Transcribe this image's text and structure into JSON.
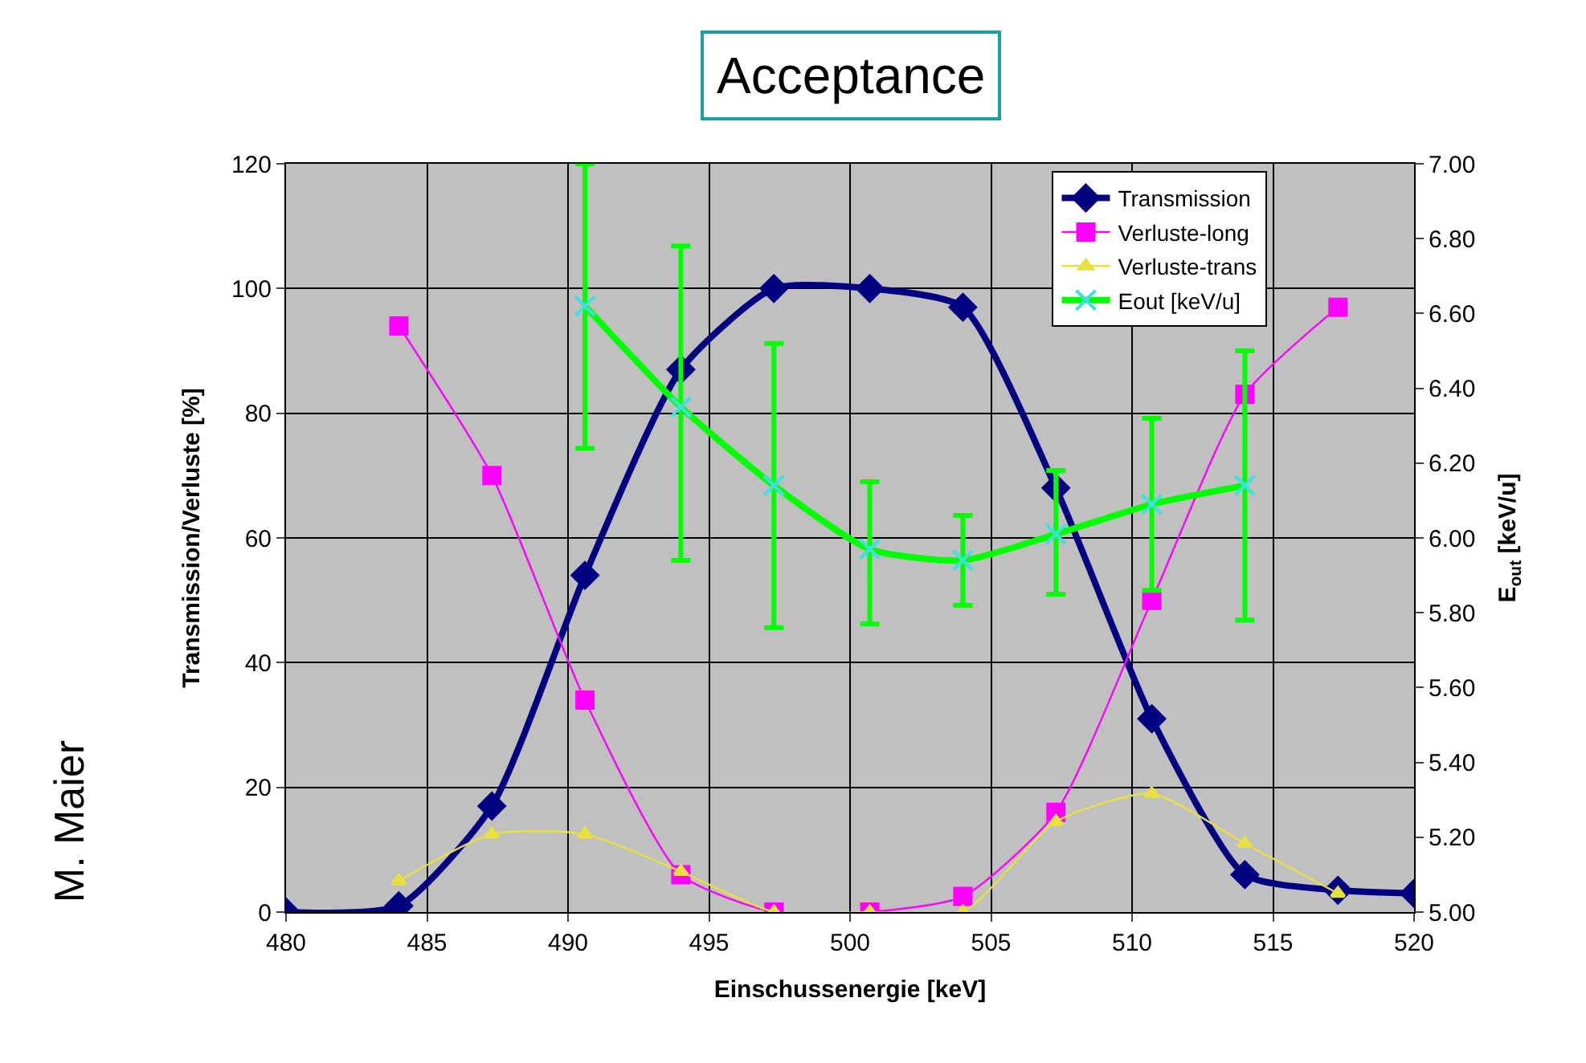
{
  "chart_data": {
    "type": "line",
    "title": "Acceptance",
    "xlabel": "Einschussenergie [keV]",
    "ylabel": "Transmission/Verluste [%]",
    "y2label": "E$_{out}$ [keV/u]",
    "annotations": [
      "M. Maier"
    ],
    "xlim": [
      480,
      520
    ],
    "xticks": [
      480,
      485,
      490,
      495,
      500,
      505,
      510,
      515,
      520
    ],
    "ylim": [
      0,
      120
    ],
    "yticks": [
      0,
      20,
      40,
      60,
      80,
      100,
      120
    ],
    "y2lim": [
      5.0,
      7.0
    ],
    "y2ticks": [
      {
        "value": 5.0,
        "label": "5.00"
      },
      {
        "value": 5.2,
        "label": "5.20"
      },
      {
        "value": 5.4,
        "label": "5.40"
      },
      {
        "value": 5.6,
        "label": "5.60"
      },
      {
        "value": 5.8,
        "label": "5.80"
      },
      {
        "value": 6.0,
        "label": "6.00"
      },
      {
        "value": 6.2,
        "label": "6.20"
      },
      {
        "value": 6.4,
        "label": "6.40"
      },
      {
        "value": 6.6,
        "label": "6.60"
      },
      {
        "value": 6.8,
        "label": "6.80"
      },
      {
        "value": 7.0,
        "label": "7.00"
      }
    ],
    "grid": true,
    "legend": "top right",
    "series": [
      {
        "name": "Transmission",
        "color": "#000080",
        "marker": "diamond",
        "x": [
          480,
          484,
          487.3,
          490.6,
          494,
          497.3,
          500.7,
          504,
          507.3,
          510.7,
          514,
          517.3,
          520
        ],
        "values": [
          0,
          1,
          17,
          54,
          87,
          100,
          100,
          97,
          68,
          31,
          6,
          3.5,
          3
        ]
      },
      {
        "name": "Verluste-long",
        "color": "#ff00ff",
        "marker": "square",
        "x": [
          484,
          487.3,
          490.6,
          494,
          497.3,
          500.7,
          504,
          507.3,
          510.7,
          514,
          517.3
        ],
        "values": [
          94,
          70,
          34,
          6,
          0,
          0,
          2.5,
          16,
          50,
          83,
          97
        ]
      },
      {
        "name": "Verluste-trans",
        "color": "#e8e040",
        "marker": "triangle",
        "x": [
          484,
          487.3,
          490.6,
          494,
          497.3,
          500.7,
          504,
          507.3,
          510.7,
          514,
          517.3
        ],
        "values": [
          5,
          12.5,
          12.5,
          6.5,
          0,
          0,
          0,
          14.5,
          19,
          11,
          3
        ]
      },
      {
        "name": "Eout [keV/u]",
        "color": "#00ff00",
        "marker": "cross",
        "axis": "y2",
        "x": [
          490.6,
          494,
          497.3,
          500.7,
          504,
          507.3,
          510.7,
          514
        ],
        "values": [
          6.62,
          6.35,
          6.14,
          5.97,
          5.94,
          6.01,
          6.09,
          6.14
        ],
        "errors": [
          [
            6.24,
            7.0
          ],
          [
            5.94,
            6.78
          ],
          [
            5.76,
            6.52
          ],
          [
            5.77,
            6.15
          ],
          [
            5.82,
            6.06
          ],
          [
            5.85,
            6.18
          ],
          [
            5.86,
            6.32
          ],
          [
            5.78,
            6.5
          ]
        ]
      }
    ]
  }
}
